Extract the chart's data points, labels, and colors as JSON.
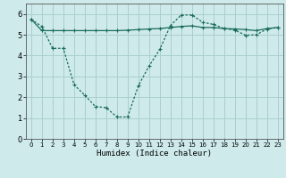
{
  "xlabel": "Humidex (Indice chaleur)",
  "background_color": "#ceeaea",
  "grid_color": "#aacfcf",
  "line_color": "#1a6b5a",
  "xlim": [
    -0.5,
    23.5
  ],
  "ylim": [
    0,
    6.5
  ],
  "xticks": [
    0,
    1,
    2,
    3,
    4,
    5,
    6,
    7,
    8,
    9,
    10,
    11,
    12,
    13,
    14,
    15,
    16,
    17,
    18,
    19,
    20,
    21,
    22,
    23
  ],
  "yticks": [
    0,
    1,
    2,
    3,
    4,
    5,
    6
  ],
  "line1_x": [
    0,
    1,
    2,
    3,
    4,
    5,
    6,
    7,
    8,
    9,
    10,
    11,
    12,
    13,
    14,
    15,
    16,
    17,
    18,
    19,
    20,
    21,
    22,
    23
  ],
  "line1_y": [
    5.75,
    5.2,
    5.2,
    5.2,
    5.2,
    5.2,
    5.2,
    5.2,
    5.2,
    5.22,
    5.25,
    5.28,
    5.3,
    5.35,
    5.4,
    5.43,
    5.35,
    5.35,
    5.3,
    5.28,
    5.25,
    5.2,
    5.3,
    5.35
  ],
  "line2_x": [
    0,
    1,
    2,
    3,
    4,
    5,
    6,
    7,
    8,
    9,
    10,
    11,
    12,
    13,
    14,
    15,
    16,
    17,
    18,
    19,
    20,
    21,
    22,
    23
  ],
  "line2_y": [
    5.75,
    5.4,
    4.35,
    4.35,
    2.6,
    2.1,
    1.55,
    1.5,
    1.05,
    1.05,
    2.55,
    3.5,
    4.3,
    5.45,
    5.95,
    5.95,
    5.6,
    5.5,
    5.3,
    5.22,
    4.98,
    5.0,
    5.28,
    5.35
  ]
}
